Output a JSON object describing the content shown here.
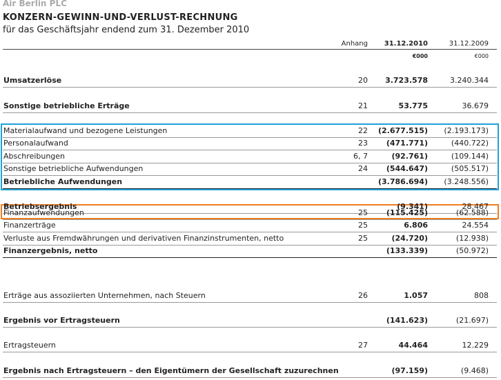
{
  "header": {
    "company": "Air Berlin PLC",
    "title": "KONZERN-GEWINN-UND-VERLUST-RECHNUNG",
    "subtitle": "für das Geschäftsjahr endend zum 31. Dezember 2010"
  },
  "table": {
    "columns": {
      "note": "Anhang",
      "current": "31.12.2010",
      "previous": "31.12.2009"
    },
    "units": {
      "current": "€000",
      "previous": "€000"
    },
    "rows": [
      {
        "label": "Umsatzerlöse",
        "note": "20",
        "current": "3.723.578",
        "previous": "3.240.344"
      },
      {
        "label": "Sonstige betriebliche Erträge",
        "note": "21",
        "current": "53.775",
        "previous": "36.679"
      },
      {
        "label": "Materialaufwand und bezogene Leistungen",
        "note": "22",
        "current": "(2.677.515)",
        "previous": "(2.193.173)"
      },
      {
        "label": "Personalaufwand",
        "note": "23",
        "current": "(471.771)",
        "previous": "(440.722)"
      },
      {
        "label": "Abschreibungen",
        "note": "6, 7",
        "current": "(92.761)",
        "previous": "(109.144)"
      },
      {
        "label": "Sonstige betriebliche Aufwendungen",
        "note": "24",
        "current": "(544.647)",
        "previous": "(505.517)"
      },
      {
        "label": "Betriebliche Aufwendungen",
        "current": "(3.786.694)",
        "previous": "(3.248.556)"
      },
      {
        "label": "Betriebsergebnis",
        "current": "(9.341)",
        "previous": "28.467"
      },
      {
        "label": "Finanzaufwendungen",
        "note": "25",
        "current": "(115.425)",
        "previous": "(62.588)"
      },
      {
        "label": "Finanzerträge",
        "note": "25",
        "current": "6.806",
        "previous": "24.554"
      },
      {
        "label": "Verluste aus Fremdwährungen und derivativen Finanzinstrumenten, netto",
        "note": "25",
        "current": "(24.720)",
        "previous": "(12.938)"
      },
      {
        "label": "Finanzergebnis, netto",
        "current": "(133.339)",
        "previous": "(50.972)"
      },
      {
        "label": "Erträge aus assoziierten Unternehmen, nach Steuern",
        "note": "26",
        "current": "1.057",
        "previous": "808"
      },
      {
        "label": "Ergebnis vor Ertragsteuern",
        "current": "(141.623)",
        "previous": "(21.697)"
      },
      {
        "label": "Ertragsteuern",
        "note": "27",
        "current": "44.464",
        "previous": "12.229"
      },
      {
        "label": "Ergebnis nach Ertragsteuern – den Eigentümern der Gesellschaft zuzurechnen",
        "current": "(97.159)",
        "previous": "(9.468)"
      }
    ]
  }
}
